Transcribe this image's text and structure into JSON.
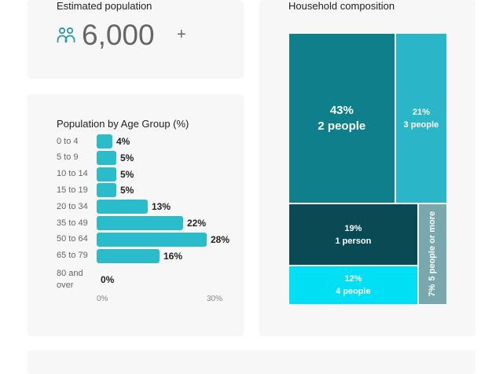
{
  "population": {
    "title": "Estimated population",
    "value": "6,000",
    "suffix": "+"
  },
  "chart_data": [
    {
      "type": "bar",
      "orientation": "horizontal",
      "title": "Population by Age Group (%)",
      "categories": [
        "0 to 4",
        "5 to 9",
        "10 to 14",
        "15 to 19",
        "20 to 34",
        "35 to 49",
        "50 to 64",
        "65 to 79",
        "80 and over"
      ],
      "values": [
        4,
        5,
        5,
        5,
        13,
        22,
        28,
        16,
        0
      ],
      "value_labels": [
        "4%",
        "5%",
        "5%",
        "5%",
        "13%",
        "22%",
        "28%",
        "16%",
        "0%"
      ],
      "color": "#2bbccb",
      "xlim": [
        0,
        30
      ],
      "xticks": [
        {
          "value": 0,
          "label": "0%"
        },
        {
          "value": 30,
          "label": "30%"
        }
      ]
    },
    {
      "type": "treemap",
      "title": "Household composition",
      "categories": [
        "2 people",
        "3 people",
        "1 person",
        "4 people",
        "5 people or more"
      ],
      "values": [
        43,
        21,
        19,
        12,
        7
      ],
      "value_labels": [
        "43%",
        "21%",
        "19%",
        "12%",
        "7%"
      ],
      "colors": [
        "#0f7f8c",
        "#2bb5c8",
        "#0a4a55",
        "#00dff3",
        "#78a8ad"
      ]
    }
  ]
}
